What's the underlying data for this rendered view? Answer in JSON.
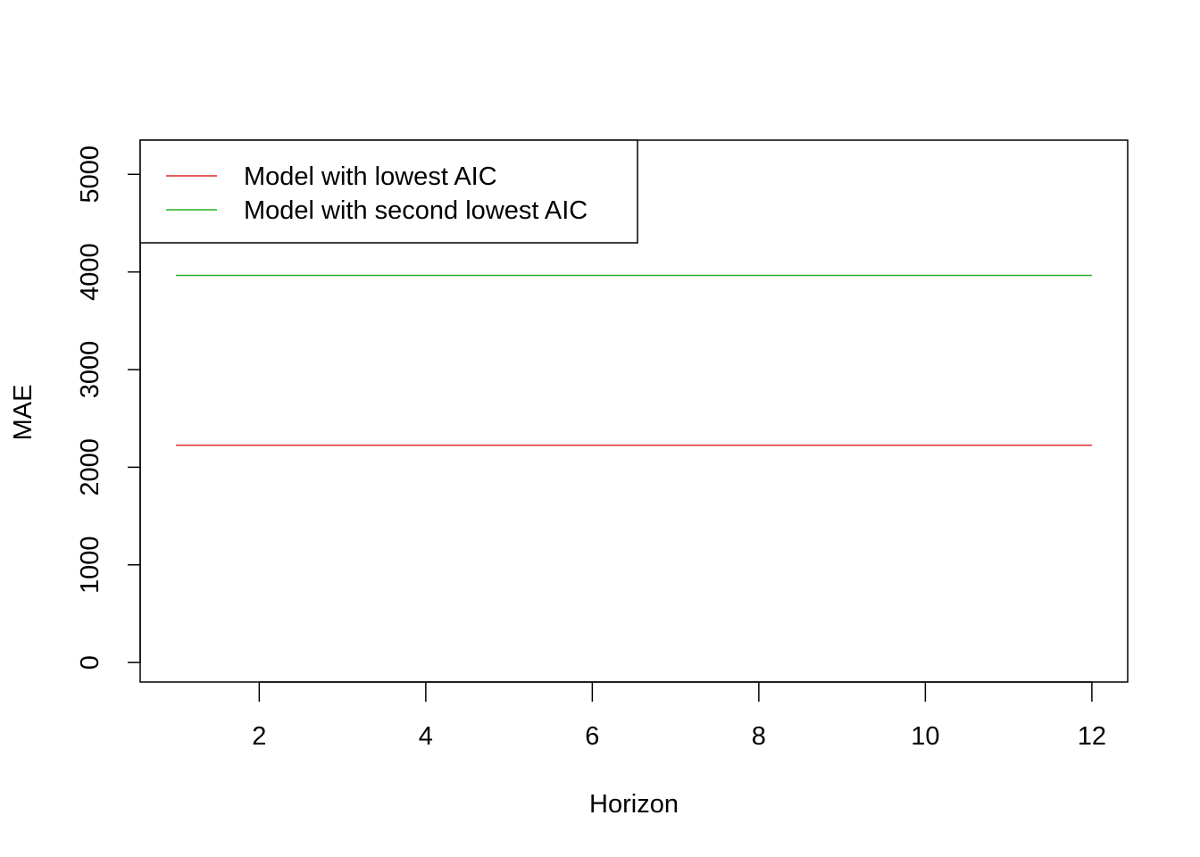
{
  "chart_data": {
    "type": "line",
    "title": "",
    "xlabel": "Horizon",
    "ylabel": "MAE",
    "xlim": [
      0.57,
      12.43
    ],
    "ylim": [
      -200,
      5350
    ],
    "x_ticks": [
      2,
      4,
      6,
      8,
      10,
      12
    ],
    "y_ticks": [
      0,
      1000,
      2000,
      3000,
      4000,
      5000
    ],
    "grid": false,
    "legend_position": "top-left",
    "x": [
      1,
      2,
      3,
      4,
      5,
      6,
      7,
      8,
      9,
      10,
      11,
      12
    ],
    "series": [
      {
        "name": "Model with lowest AIC",
        "color": "#df2a2a",
        "values": [
          2225,
          2225,
          2225,
          2225,
          2225,
          2225,
          2225,
          2225,
          2225,
          2225,
          2225,
          2225
        ]
      },
      {
        "name": "Model with second lowest AIC",
        "color": "#22b022",
        "values": [
          3965,
          3965,
          3965,
          3965,
          3965,
          3965,
          3965,
          3965,
          3965,
          3965,
          3965,
          3965
        ]
      }
    ]
  }
}
